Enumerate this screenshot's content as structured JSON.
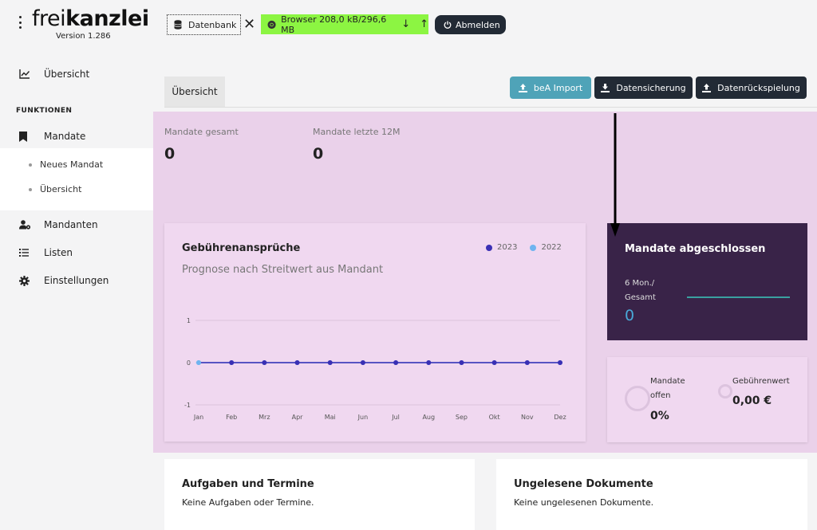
{
  "app": {
    "logo_part1": "frei",
    "logo_part2": "kanzlei",
    "version": "Version 1.286"
  },
  "topbar": {
    "database_label": "Datenbank",
    "browser_label": "Browser 208,0 kB/296,6 MB",
    "logout_label": "Abmelden",
    "browser_bg": "#8cf542"
  },
  "sidebar": {
    "overview_label": "Übersicht",
    "section_label": "FUNKTIONEN",
    "mandate_label": "Mandate",
    "sub_new": "Neues Mandat",
    "sub_overview": "Übersicht",
    "clients_label": "Mandanten",
    "lists_label": "Listen",
    "settings_label": "Einstellungen"
  },
  "main": {
    "tab_label": "Übersicht",
    "actions": {
      "bea": "beA Import",
      "backup": "Datensicherung",
      "restore": "Datenrückspielung"
    },
    "stats": {
      "total_label": "Mandate gesamt",
      "total_value": "0",
      "last12_label": "Mandate letzte 12M",
      "last12_value": "0"
    },
    "fees_card": {
      "title": "Gebührenansprüche",
      "subtitle": "Prognose nach Streitwert aus Mandant"
    },
    "closed_card": {
      "title": "Mandate abgeschlossen",
      "period_line1": "6 Mon./",
      "period_line2": "Gesamt",
      "value": "0"
    },
    "open_card": {
      "open_line1": "Mandate",
      "open_line2": "offen",
      "open_value": "0%",
      "fee_label": "Gebührenwert",
      "fee_value": "0,00 €"
    },
    "tasks_card": {
      "title": "Aufgaben und Termine",
      "text": "Keine Aufgaben oder Termine."
    },
    "docs_card": {
      "title": "Ungelesene Dokumente",
      "text": "Keine ungelesenen Dokumente."
    }
  },
  "chart_data": {
    "type": "line",
    "categories": [
      "Jan",
      "Feb",
      "Mrz",
      "Apr",
      "Mai",
      "Jun",
      "Jul",
      "Aug",
      "Sep",
      "Okt",
      "Nov",
      "Dez"
    ],
    "series": [
      {
        "name": "2023",
        "color": "#3a2fb4",
        "values": [
          0,
          0,
          0,
          0,
          0,
          0,
          0,
          0,
          0,
          0,
          0,
          0
        ]
      },
      {
        "name": "2022",
        "color": "#6fb4f0",
        "values": [
          0,
          0,
          0,
          0,
          0,
          0,
          0,
          0,
          0,
          0,
          0,
          0
        ]
      }
    ],
    "yticks": [
      "1",
      "0",
      "-1"
    ],
    "ylim": [
      -1,
      1
    ],
    "legend": "top-right",
    "grid": true
  }
}
